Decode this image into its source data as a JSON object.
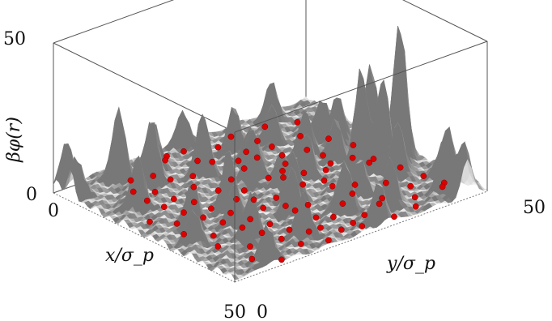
{
  "chart_data": {
    "type": "surface3d",
    "zlabel": "βφ(r)",
    "xlabel": "x/σ_p",
    "ylabel": "y/σ_p",
    "ticks": {
      "z_top": "50",
      "z_bottom": "0",
      "x_start": "0",
      "x_end": "50",
      "y_start": "0",
      "y_end": "50"
    },
    "xlim": [
      0,
      50
    ],
    "ylim": [
      0,
      50
    ],
    "zlim": [
      0,
      50
    ],
    "surface_color": "#e6e6e6",
    "particle_color": "#dd0000",
    "particles": [
      [
        2.0,
        21.0
      ],
      [
        3.0,
        20.0
      ],
      [
        2.5,
        24.0
      ],
      [
        7.0,
        23.5
      ],
      [
        9.0,
        25.0
      ],
      [
        12.0,
        28.0
      ],
      [
        15.0,
        27.0
      ],
      [
        10.0,
        31.0
      ],
      [
        13.0,
        31.0
      ],
      [
        7.5,
        35.0
      ],
      [
        11.5,
        35.0
      ],
      [
        15.0,
        34.5
      ],
      [
        18.0,
        33.0
      ],
      [
        20.0,
        31.0
      ],
      [
        21.0,
        27.5
      ],
      [
        23.0,
        29.0
      ],
      [
        24.5,
        32.0
      ],
      [
        27.0,
        30.0
      ],
      [
        17.0,
        38.0
      ],
      [
        20.0,
        39.0
      ],
      [
        23.5,
        38.0
      ],
      [
        25.0,
        36.0
      ],
      [
        28.0,
        33.5
      ],
      [
        31.0,
        33.0
      ],
      [
        33.0,
        36.0
      ],
      [
        36.5,
        33.0
      ],
      [
        38.0,
        30.0
      ],
      [
        40.5,
        36.0
      ],
      [
        42.5,
        34.0
      ],
      [
        44.0,
        30.0
      ],
      [
        45.0,
        27.0
      ],
      [
        47.5,
        27.0
      ],
      [
        46.0,
        24.0
      ],
      [
        43.0,
        22.0
      ],
      [
        41.0,
        26.0
      ],
      [
        39.0,
        24.0
      ],
      [
        36.0,
        22.0
      ],
      [
        34.0,
        26.0
      ],
      [
        32.0,
        23.0
      ],
      [
        30.0,
        20.0
      ],
      [
        28.0,
        24.0
      ],
      [
        26.0,
        21.0
      ],
      [
        24.0,
        19.0
      ],
      [
        22.0,
        22.0
      ],
      [
        19.0,
        19.0
      ],
      [
        17.0,
        23.0
      ],
      [
        15.0,
        17.0
      ],
      [
        12.0,
        19.0
      ],
      [
        10.0,
        16.0
      ],
      [
        8.0,
        14.0
      ],
      [
        6.0,
        11.0
      ],
      [
        9.5,
        9.0
      ],
      [
        12.0,
        11.5
      ],
      [
        14.0,
        8.5
      ],
      [
        16.5,
        12.0
      ],
      [
        18.0,
        9.0
      ],
      [
        20.0,
        13.5
      ],
      [
        22.0,
        10.0
      ],
      [
        24.0,
        14.0
      ],
      [
        26.0,
        11.0
      ],
      [
        28.0,
        15.0
      ],
      [
        30.0,
        12.0
      ],
      [
        32.0,
        16.0
      ],
      [
        34.0,
        13.0
      ],
      [
        36.0,
        17.0
      ],
      [
        38.0,
        14.0
      ],
      [
        40.0,
        18.0
      ],
      [
        42.0,
        15.0
      ],
      [
        44.0,
        19.0
      ],
      [
        46.0,
        16.0
      ],
      [
        48.0,
        20.0
      ],
      [
        36.0,
        40.0
      ],
      [
        40.0,
        42.0
      ],
      [
        44.0,
        40.0
      ],
      [
        47.0,
        38.0
      ],
      [
        30.0,
        41.0
      ],
      [
        27.0,
        44.0
      ],
      [
        33.0,
        45.0
      ],
      [
        38.0,
        46.0
      ],
      [
        43.0,
        46.5
      ],
      [
        46.0,
        44.0
      ],
      [
        48.0,
        33.0
      ],
      [
        20.0,
        45.0
      ],
      [
        24.0,
        42.0
      ],
      [
        16.0,
        43.0
      ],
      [
        11.0,
        41.0
      ],
      [
        6.0,
        44.0
      ],
      [
        4.0,
        39.0
      ],
      [
        3.0,
        33.0
      ],
      [
        5.0,
        29.0
      ],
      [
        49.0,
        10.0
      ],
      [
        45.0,
        7.0
      ],
      [
        41.0,
        9.5
      ],
      [
        37.0,
        6.0
      ],
      [
        33.0,
        8.0
      ],
      [
        29.0,
        5.0
      ],
      [
        25.0,
        6.5
      ],
      [
        21.0,
        4.0
      ]
    ],
    "peaks": [
      [
        30,
        47,
        46
      ],
      [
        31,
        43,
        30
      ],
      [
        29,
        40,
        34
      ],
      [
        22,
        47,
        26
      ],
      [
        46,
        45,
        22
      ],
      [
        4,
        10,
        24
      ],
      [
        9,
        13,
        22
      ],
      [
        5,
        16,
        18
      ],
      [
        12,
        21,
        20
      ],
      [
        15,
        6,
        17
      ],
      [
        20,
        25,
        18
      ],
      [
        26,
        16,
        19
      ],
      [
        31,
        25,
        16
      ],
      [
        35,
        22,
        15
      ],
      [
        40,
        29,
        17
      ],
      [
        44,
        35,
        16
      ],
      [
        49,
        46,
        18
      ],
      [
        48,
        30,
        14
      ],
      [
        18,
        37,
        14
      ],
      [
        35,
        43,
        17
      ],
      [
        24,
        33,
        13
      ],
      [
        13,
        44,
        12
      ],
      [
        8,
        30,
        14
      ],
      [
        17,
        44,
        15
      ],
      [
        27,
        8,
        14
      ],
      [
        39,
        11,
        16
      ],
      [
        44,
        18,
        14
      ],
      [
        3,
        41,
        12
      ],
      [
        10,
        36,
        11
      ],
      [
        22,
        40,
        12
      ],
      [
        32,
        13,
        13
      ],
      [
        48,
        8,
        12
      ],
      [
        1,
        2,
        16
      ],
      [
        5,
        1,
        14
      ],
      [
        1,
        25,
        12
      ],
      [
        41,
        48,
        12
      ],
      [
        14,
        29,
        13
      ],
      [
        37,
        34,
        12
      ],
      [
        24,
        28,
        11
      ],
      [
        33,
        4,
        10
      ]
    ]
  }
}
